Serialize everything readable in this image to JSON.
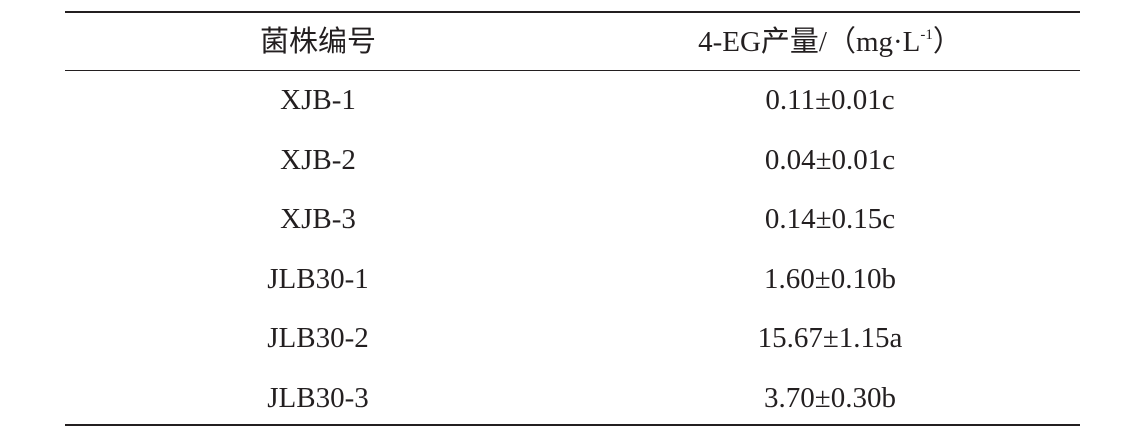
{
  "table": {
    "header": [
      {
        "text": "菌株编号"
      },
      {
        "text": "4-EG产量/（mg·L",
        "sup": "-1",
        "tail": "）"
      }
    ],
    "rows": [
      [
        "XJB-1",
        "0.11±0.01c"
      ],
      [
        "XJB-2",
        "0.04±0.01c"
      ],
      [
        "XJB-3",
        "0.14±0.15c"
      ],
      [
        "JLB30-1",
        "1.60±0.10b"
      ],
      [
        "JLB30-2",
        "15.67±1.15a"
      ],
      [
        "JLB30-3",
        "3.70±0.30b"
      ]
    ]
  }
}
